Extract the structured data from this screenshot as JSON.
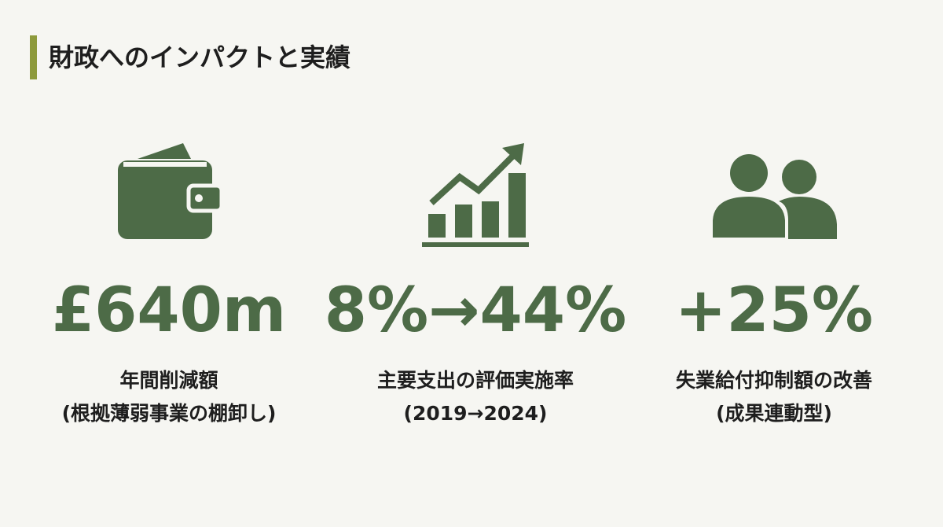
{
  "header": {
    "title": "財政へのインパクトと実績"
  },
  "stats": [
    {
      "value": "£640m",
      "label": "年間削減額",
      "note": "(根拠薄弱事業の棚卸し)"
    },
    {
      "value": "8%→44%",
      "label": "主要支出の評価実施率",
      "note": "(2019→2024)"
    },
    {
      "value": "+25%",
      "label": "失業給付抑制額の改善",
      "note": "(成果連動型)"
    }
  ]
}
